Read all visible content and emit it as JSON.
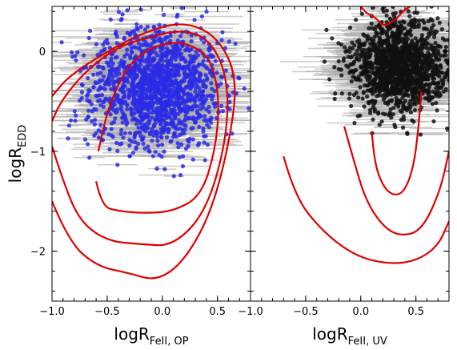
{
  "chart_data": [
    {
      "type": "scatter",
      "panel": "left",
      "xlabel": {
        "main": "logR",
        "sub": "FeII, OP"
      },
      "ylabel": {
        "main": "logR",
        "sub": "EDD"
      },
      "xlim": [
        -1.0,
        0.8
      ],
      "ylim": [
        -2.5,
        0.45
      ],
      "x_ticks": [
        -1.0,
        -0.5,
        0.0,
        0.5
      ],
      "x_tick_labels": [
        "−1.0",
        "−0.5",
        "0.0",
        "0.5"
      ],
      "y_ticks": [
        -2,
        -1,
        0
      ],
      "y_tick_labels": [
        "−2",
        "−1",
        "0"
      ],
      "grid": false,
      "point_color": "#2a2ae6",
      "errorbar_color": "#a8a8a8",
      "contour_color": "#e00000",
      "points_summary": {
        "count": 1500,
        "x_center": -0.05,
        "y_center": -0.35,
        "x_spread": 0.3,
        "y_spread": 0.3
      },
      "contours": [
        {
          "level": "outer",
          "path": [
            [
              -1.0,
              -1.5
            ],
            [
              -0.85,
              -1.9
            ],
            [
              -0.6,
              -2.15
            ],
            [
              -0.3,
              -2.22
            ],
            [
              -0.05,
              -2.3
            ],
            [
              0.2,
              -2.1
            ],
            [
              0.45,
              -1.6
            ],
            [
              0.62,
              -0.85
            ],
            [
              0.68,
              -0.25
            ],
            [
              0.5,
              0.15
            ],
            [
              0.2,
              0.3
            ],
            [
              -0.15,
              0.2
            ],
            [
              -0.5,
              0.0
            ],
            [
              -0.85,
              -0.25
            ],
            [
              -1.0,
              -0.45
            ]
          ]
        },
        {
          "level": "middle",
          "path": [
            [
              -1.0,
              -0.95
            ],
            [
              -0.9,
              -1.3
            ],
            [
              -0.75,
              -1.7
            ],
            [
              -0.5,
              -1.9
            ],
            [
              -0.2,
              -1.93
            ],
            [
              0.1,
              -1.95
            ],
            [
              0.4,
              -1.6
            ],
            [
              0.58,
              -0.9
            ],
            [
              0.6,
              -0.3
            ],
            [
              0.45,
              0.1
            ],
            [
              0.2,
              0.22
            ],
            [
              -0.1,
              0.15
            ],
            [
              -0.4,
              0.05
            ],
            [
              -0.7,
              -0.2
            ],
            [
              -0.92,
              -0.5
            ],
            [
              -1.0,
              -0.7
            ]
          ]
        },
        {
          "level": "inner",
          "path": [
            [
              -0.6,
              -1.3
            ],
            [
              -0.55,
              -1.55
            ],
            [
              -0.4,
              -1.6
            ],
            [
              -0.15,
              -1.62
            ],
            [
              0.1,
              -1.6
            ],
            [
              0.35,
              -1.45
            ],
            [
              0.48,
              -1.0
            ],
            [
              0.52,
              -0.5
            ],
            [
              0.45,
              -0.1
            ],
            [
              0.3,
              0.05
            ],
            [
              0.1,
              0.1
            ],
            [
              -0.15,
              0.02
            ],
            [
              -0.35,
              -0.2
            ],
            [
              -0.5,
              -0.6
            ],
            [
              -0.58,
              -1.0
            ]
          ]
        }
      ]
    },
    {
      "type": "scatter",
      "panel": "right",
      "xlabel": {
        "main": "logR",
        "sub": "FeII, UV"
      },
      "xlim": [
        -1.0,
        0.8
      ],
      "ylim": [
        -2.5,
        0.45
      ],
      "x_ticks": [
        -1.0,
        -0.5,
        0.0,
        0.5
      ],
      "x_tick_labels": [
        "−1.0",
        "−0.5",
        "0.0",
        "0.5"
      ],
      "y_ticks": [
        -2,
        -1,
        0
      ],
      "grid": false,
      "point_color": "#111111",
      "errorbar_color": "#a8a8a8",
      "contour_color": "#e00000",
      "points_summary": {
        "count": 1500,
        "x_center": 0.35,
        "y_center": -0.15,
        "x_spread": 0.22,
        "y_spread": 0.22
      },
      "contours": [
        {
          "level": "outer",
          "path": [
            [
              -0.7,
              -1.05
            ],
            [
              -0.6,
              -1.45
            ],
            [
              -0.35,
              -1.8
            ],
            [
              -0.05,
              -2.05
            ],
            [
              0.25,
              -2.13
            ],
            [
              0.5,
              -2.1
            ],
            [
              0.7,
              -1.95
            ],
            [
              0.8,
              -1.7
            ]
          ]
        },
        {
          "level": "middle",
          "path": [
            [
              -0.15,
              -0.75
            ],
            [
              -0.05,
              -1.15
            ],
            [
              0.05,
              -1.5
            ],
            [
              0.2,
              -1.75
            ],
            [
              0.35,
              -1.85
            ],
            [
              0.55,
              -1.8
            ],
            [
              0.72,
              -1.4
            ],
            [
              0.8,
              -1.0
            ]
          ]
        },
        {
          "level": "inner",
          "path": [
            [
              0.1,
              -0.8
            ],
            [
              0.12,
              -1.1
            ],
            [
              0.2,
              -1.35
            ],
            [
              0.3,
              -1.45
            ],
            [
              0.4,
              -1.4
            ],
            [
              0.48,
              -1.15
            ],
            [
              0.52,
              -0.8
            ],
            [
              0.55,
              -0.4
            ]
          ]
        },
        {
          "level": "top-blob",
          "path": [
            [
              0.0,
              0.45
            ],
            [
              0.05,
              0.38
            ],
            [
              0.1,
              0.36
            ],
            [
              0.15,
              0.32
            ],
            [
              0.2,
              0.25
            ],
            [
              0.3,
              0.3
            ],
            [
              0.4,
              0.42
            ],
            [
              0.45,
              0.45
            ]
          ]
        }
      ]
    }
  ]
}
